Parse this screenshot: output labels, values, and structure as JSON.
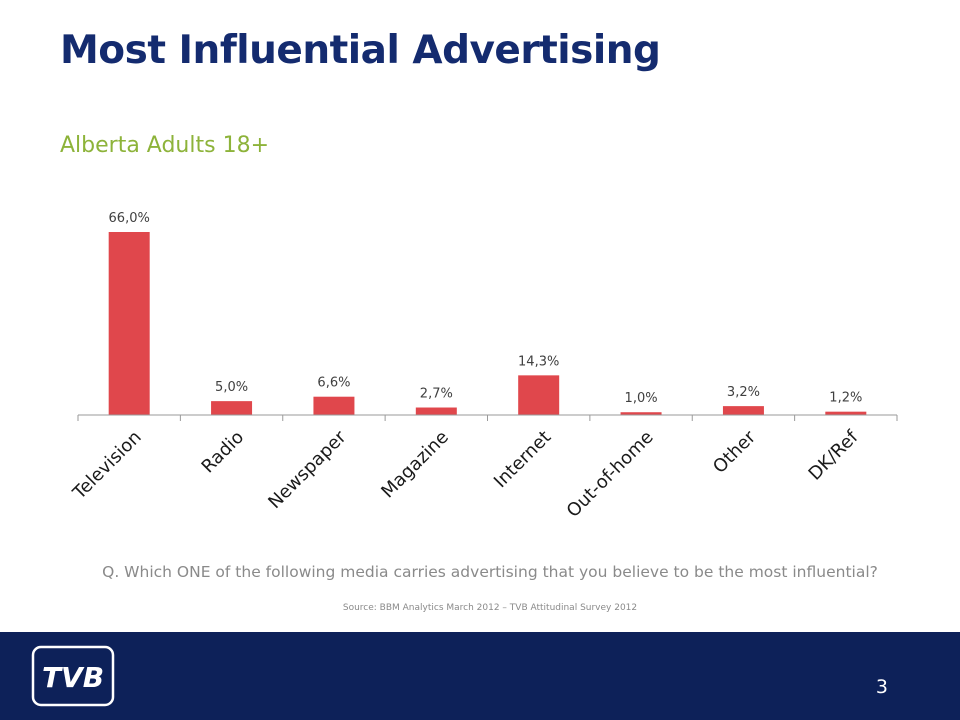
{
  "slide": {
    "title": "Most Influential Advertising",
    "subtitle": "Alberta Adults 18+",
    "question": "Q. Which ONE of the following media carries advertising that you believe to be the most influential?",
    "source": "Source: BBM Analytics March 2012 – TVB Attitudinal Survey 2012",
    "page_number": "3",
    "logo_text": "TVB"
  },
  "colors": {
    "title": "#142b6f",
    "subtitle": "#8db33a",
    "bar": "#e0474c",
    "footer": "#0d2159"
  },
  "chart_data": {
    "type": "bar",
    "categories": [
      "Television",
      "Radio",
      "Newspaper",
      "Magazine",
      "Internet",
      "Out-of-home",
      "Other",
      "DK/Ref"
    ],
    "values": [
      66.0,
      5.0,
      6.6,
      2.7,
      14.3,
      1.0,
      3.2,
      1.2
    ],
    "data_labels": [
      "66,0%",
      "5,0%",
      "6,6%",
      "2,7%",
      "14,3%",
      "1,0%",
      "3,2%",
      "1,2%"
    ],
    "title": "",
    "xlabel": "",
    "ylabel": "",
    "ylim": [
      0,
      70
    ],
    "grid": false,
    "legend": "none"
  }
}
